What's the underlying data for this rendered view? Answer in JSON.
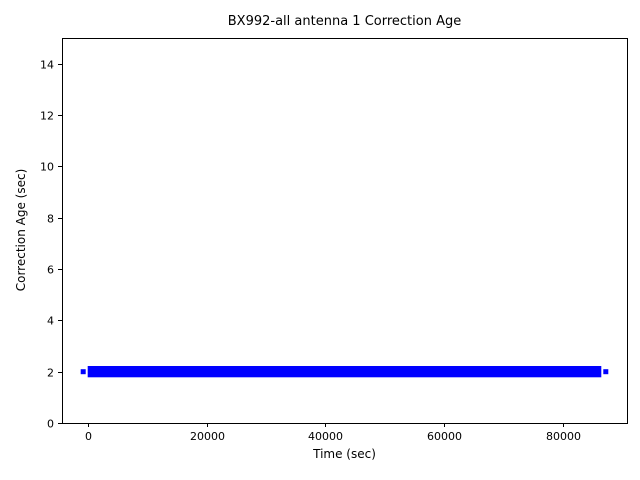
{
  "figure": {
    "background_color": "#ffffff",
    "text_color": "#000000",
    "spine_color": "#000000"
  },
  "chart_data": {
    "type": "line",
    "title": "BX992-all antenna 1 Correction Age",
    "xlabel": "Time (sec)",
    "ylabel": "Correction Age (sec)",
    "xlim": [
      -4320,
      90720
    ],
    "ylim": [
      0,
      15
    ],
    "xticks": [
      0,
      20000,
      40000,
      60000,
      80000
    ],
    "yticks": [
      0,
      2,
      4,
      6,
      8,
      10,
      12,
      14
    ],
    "grid": false,
    "legend": "none",
    "series": [
      {
        "name": "antenna 1 correction age",
        "color": "#0000ff",
        "x_start": 0,
        "x_end": 86400,
        "y_mean": 2,
        "y_min": 1.78,
        "y_max": 2.22,
        "description": "dense samples all at ~2 sec across the full day, rendering as a solid thick blue band at y=2 with single sparse points just before the start and just after the end"
      }
    ]
  }
}
